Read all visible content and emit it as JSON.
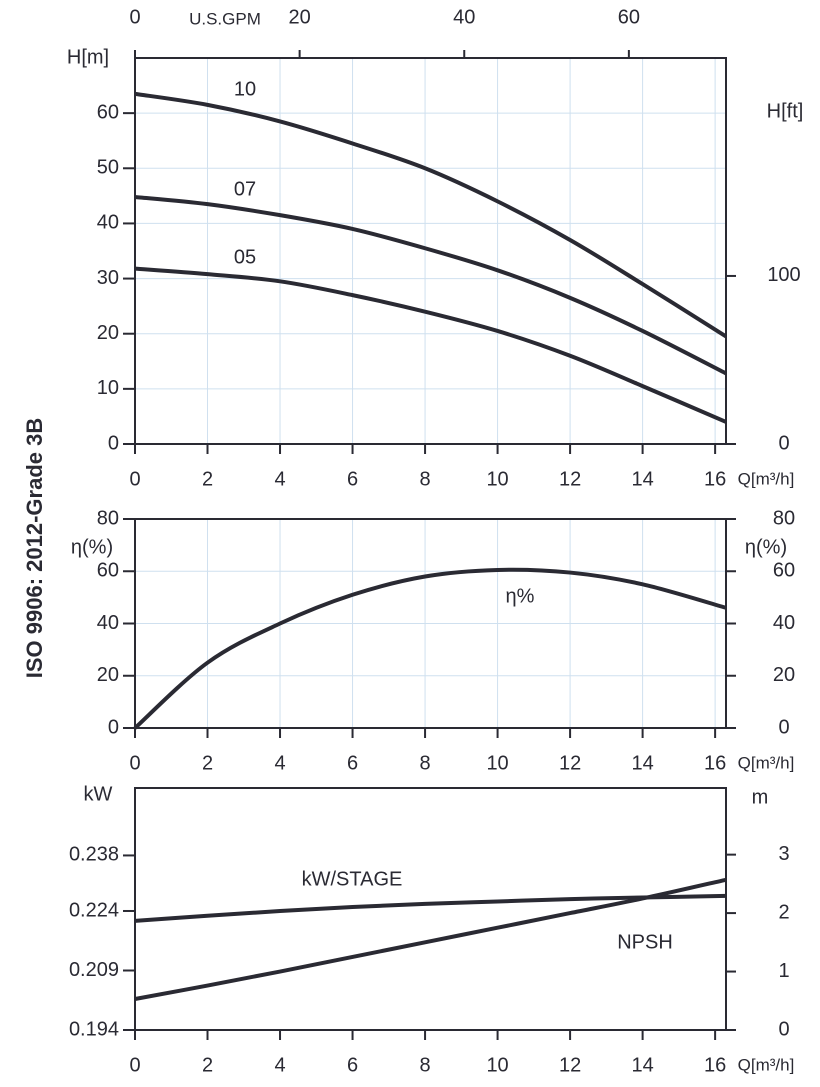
{
  "side_label": "ISO 9906: 2012-Grade 3B",
  "chart_data": [
    {
      "type": "line",
      "xlabel": "Q[m³/h]",
      "ylabel": "H[m]",
      "y2label": "H[ft]",
      "x2label": "U.S.GPM",
      "x": [
        0,
        2,
        4,
        6,
        8,
        10,
        12,
        14,
        16.3
      ],
      "series": [
        {
          "name": "10",
          "color": "#2a2a33",
          "values": [
            63.5,
            61.5,
            58.5,
            54.5,
            50,
            44,
            37,
            29,
            19.5
          ]
        },
        {
          "name": "07",
          "color": "#2a2a33",
          "values": [
            44.8,
            43.5,
            41.5,
            39,
            35.5,
            31.5,
            26.5,
            20.5,
            12.8
          ]
        },
        {
          "name": "05",
          "color": "#2a2a33",
          "values": [
            31.8,
            30.8,
            29.5,
            27,
            24,
            20.5,
            16,
            10.5,
            4
          ]
        }
      ],
      "xlim": [
        0,
        16.3
      ],
      "xticks": [
        0,
        2,
        4,
        6,
        8,
        10,
        12,
        14,
        16
      ],
      "ylim": [
        0,
        70
      ],
      "yticks": [
        0,
        10,
        20,
        30,
        40,
        50,
        60
      ],
      "y2lim": [
        0,
        229.7
      ],
      "y2ticks": [
        0,
        100
      ],
      "x2lim": [
        0,
        71.8
      ],
      "x2ticks": [
        0,
        20,
        40,
        60
      ],
      "grid": true
    },
    {
      "type": "line",
      "xlabel": "Q[m³/h]",
      "ylabel": "η(%)",
      "y2label": "η(%)",
      "x": [
        0,
        2,
        4,
        6,
        8,
        10,
        12,
        14,
        16.3
      ],
      "series": [
        {
          "name": "η%",
          "color": "#2a2a33",
          "values": [
            0,
            25,
            40,
            51,
            58,
            60.5,
            59.5,
            55,
            46
          ]
        }
      ],
      "xlim": [
        0,
        16.3
      ],
      "xticks": [
        0,
        2,
        4,
        6,
        8,
        10,
        12,
        14,
        16
      ],
      "ylim": [
        0,
        80
      ],
      "yticks": [
        0,
        20,
        40,
        60,
        80
      ],
      "y2lim": [
        0,
        80
      ],
      "y2ticks": [
        0,
        20,
        40,
        60,
        80
      ],
      "grid": true
    },
    {
      "type": "line",
      "xlabel": "Q[m³/h]",
      "ylabel": "kW",
      "y2label": "m",
      "x": [
        0,
        2,
        4,
        6,
        8,
        10,
        12,
        14,
        16.3
      ],
      "series": [
        {
          "name": "kW/STAGE",
          "color": "#2a2a33",
          "values": [
            0.2215,
            0.2228,
            0.224,
            0.225,
            0.2258,
            0.2264,
            0.227,
            0.2274,
            0.2278
          ]
        },
        {
          "name": "NPSH",
          "color": "#2a2a33",
          "axis": "y2",
          "values": [
            0.53,
            0.76,
            1.0,
            1.25,
            1.5,
            1.75,
            2.0,
            2.25,
            2.57
          ]
        }
      ],
      "xlim": [
        0,
        16.3
      ],
      "xticks": [
        0,
        2,
        4,
        6,
        8,
        10,
        12,
        14,
        16
      ],
      "ylim": [
        0.194,
        0.255
      ],
      "yticks": [
        0.194,
        0.209,
        0.224,
        0.238
      ],
      "y2lim": [
        0,
        4.14
      ],
      "y2ticks": [
        0,
        1,
        2,
        3
      ],
      "grid": false
    }
  ]
}
